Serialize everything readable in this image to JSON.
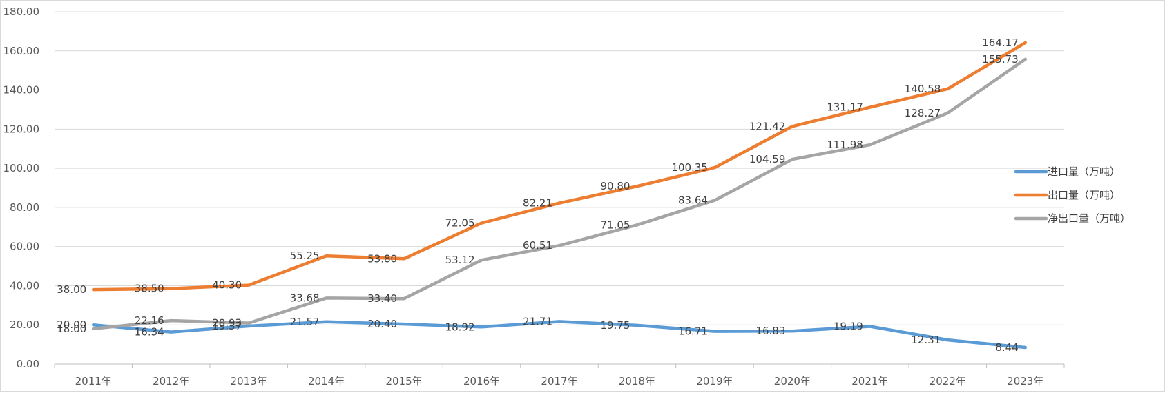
{
  "chart_data": {
    "type": "line",
    "title": "",
    "xlabel": "",
    "ylabel": "",
    "ylim": [
      0,
      180
    ],
    "yticks": [
      "0.00",
      "20.00",
      "40.00",
      "60.00",
      "80.00",
      "100.00",
      "120.00",
      "140.00",
      "160.00",
      "180.00"
    ],
    "categories": [
      "2011年",
      "2012年",
      "2013年",
      "2014年",
      "2015年",
      "2016年",
      "2017年",
      "2018年",
      "2019年",
      "2020年",
      "2021年",
      "2022年",
      "2023年"
    ],
    "series": [
      {
        "name": "进口量（万吨）",
        "color": "#5b9bd5",
        "values": [
          20.0,
          16.34,
          19.37,
          21.57,
          20.4,
          18.92,
          21.71,
          19.75,
          16.71,
          16.83,
          19.19,
          12.31,
          8.44
        ],
        "labels": [
          "20.00",
          "16.34",
          "19.37",
          "21.57",
          "20.40",
          "18.92",
          "21.71",
          "19.75",
          "16.71",
          "16.83",
          "19.19",
          "12.31",
          "8.44"
        ]
      },
      {
        "name": "出口量（万吨）",
        "color": "#ed7d31",
        "values": [
          38.0,
          38.5,
          40.3,
          55.25,
          53.8,
          72.05,
          82.21,
          90.8,
          100.35,
          121.42,
          131.17,
          140.58,
          164.17
        ],
        "labels": [
          "38.00",
          "38.50",
          "40.30",
          "55.25",
          "53.80",
          "72.05",
          "82.21",
          "90.80",
          "100.35",
          "121.42",
          "131.17",
          "140.58",
          "164.17"
        ]
      },
      {
        "name": "净出口量（万吨）",
        "color": "#a5a5a5",
        "values": [
          18.0,
          22.16,
          20.93,
          33.68,
          33.4,
          53.12,
          60.51,
          71.05,
          83.64,
          104.59,
          111.98,
          128.27,
          155.73
        ],
        "labels": [
          "18.00",
          "22.16",
          "20.93",
          "33.68",
          "33.40",
          "53.12",
          "60.51",
          "71.05",
          "83.64",
          "104.59",
          "111.98",
          "128.27",
          "155.73"
        ]
      }
    ],
    "legend_position": "right",
    "grid": true
  }
}
